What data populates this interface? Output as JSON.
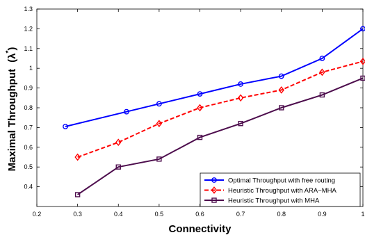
{
  "chart_data": {
    "type": "line",
    "xlabel": "Connectivity",
    "ylabel": "Maximal Throughput",
    "ylabel_symbol": "(λ",
    "ylabel_symbol_sup": "*",
    "ylabel_symbol_close": ")",
    "xlim": [
      0.2,
      1.0
    ],
    "ylim": [
      0.3,
      1.3
    ],
    "xticks": [
      "0.2",
      "0.3",
      "0.4",
      "0.5",
      "0.6",
      "0.7",
      "0.8",
      "0.9",
      "1"
    ],
    "xtick_values": [
      0.2,
      0.3,
      0.4,
      0.5,
      0.6,
      0.7,
      0.8,
      0.9,
      1.0
    ],
    "yticks": [
      "0.4",
      "0.5",
      "0.6",
      "0.7",
      "0.8",
      "0.9",
      "1",
      "1.1",
      "1.2",
      "1.3"
    ],
    "ytick_values": [
      0.4,
      0.5,
      0.6,
      0.7,
      0.8,
      0.9,
      1.0,
      1.1,
      1.2,
      1.3
    ],
    "grid": false,
    "legend_position": "lower-right",
    "series": [
      {
        "name": "Optimal Throughput with free routing",
        "color": "#0000ff",
        "line_style": "solid",
        "marker": "circle",
        "x": [
          0.27,
          0.42,
          0.5,
          0.6,
          0.7,
          0.8,
          0.9,
          1.0
        ],
        "y": [
          0.705,
          0.78,
          0.82,
          0.87,
          0.92,
          0.96,
          1.05,
          1.2
        ]
      },
      {
        "name": "Heuristic Throughput with ARA−MHA",
        "color": "#ff0000",
        "line_style": "dashed",
        "marker": "diamond",
        "x": [
          0.3,
          0.4,
          0.5,
          0.6,
          0.7,
          0.8,
          0.9,
          1.0
        ],
        "y": [
          0.55,
          0.625,
          0.72,
          0.8,
          0.85,
          0.89,
          0.98,
          1.035
        ]
      },
      {
        "name": "Heuristic Throughput with MHA",
        "color": "#4d0d4d",
        "line_style": "solid",
        "marker": "square",
        "x": [
          0.3,
          0.4,
          0.5,
          0.6,
          0.7,
          0.8,
          0.9,
          1.0
        ],
        "y": [
          0.36,
          0.5,
          0.54,
          0.65,
          0.72,
          0.8,
          0.865,
          0.95
        ]
      }
    ]
  }
}
